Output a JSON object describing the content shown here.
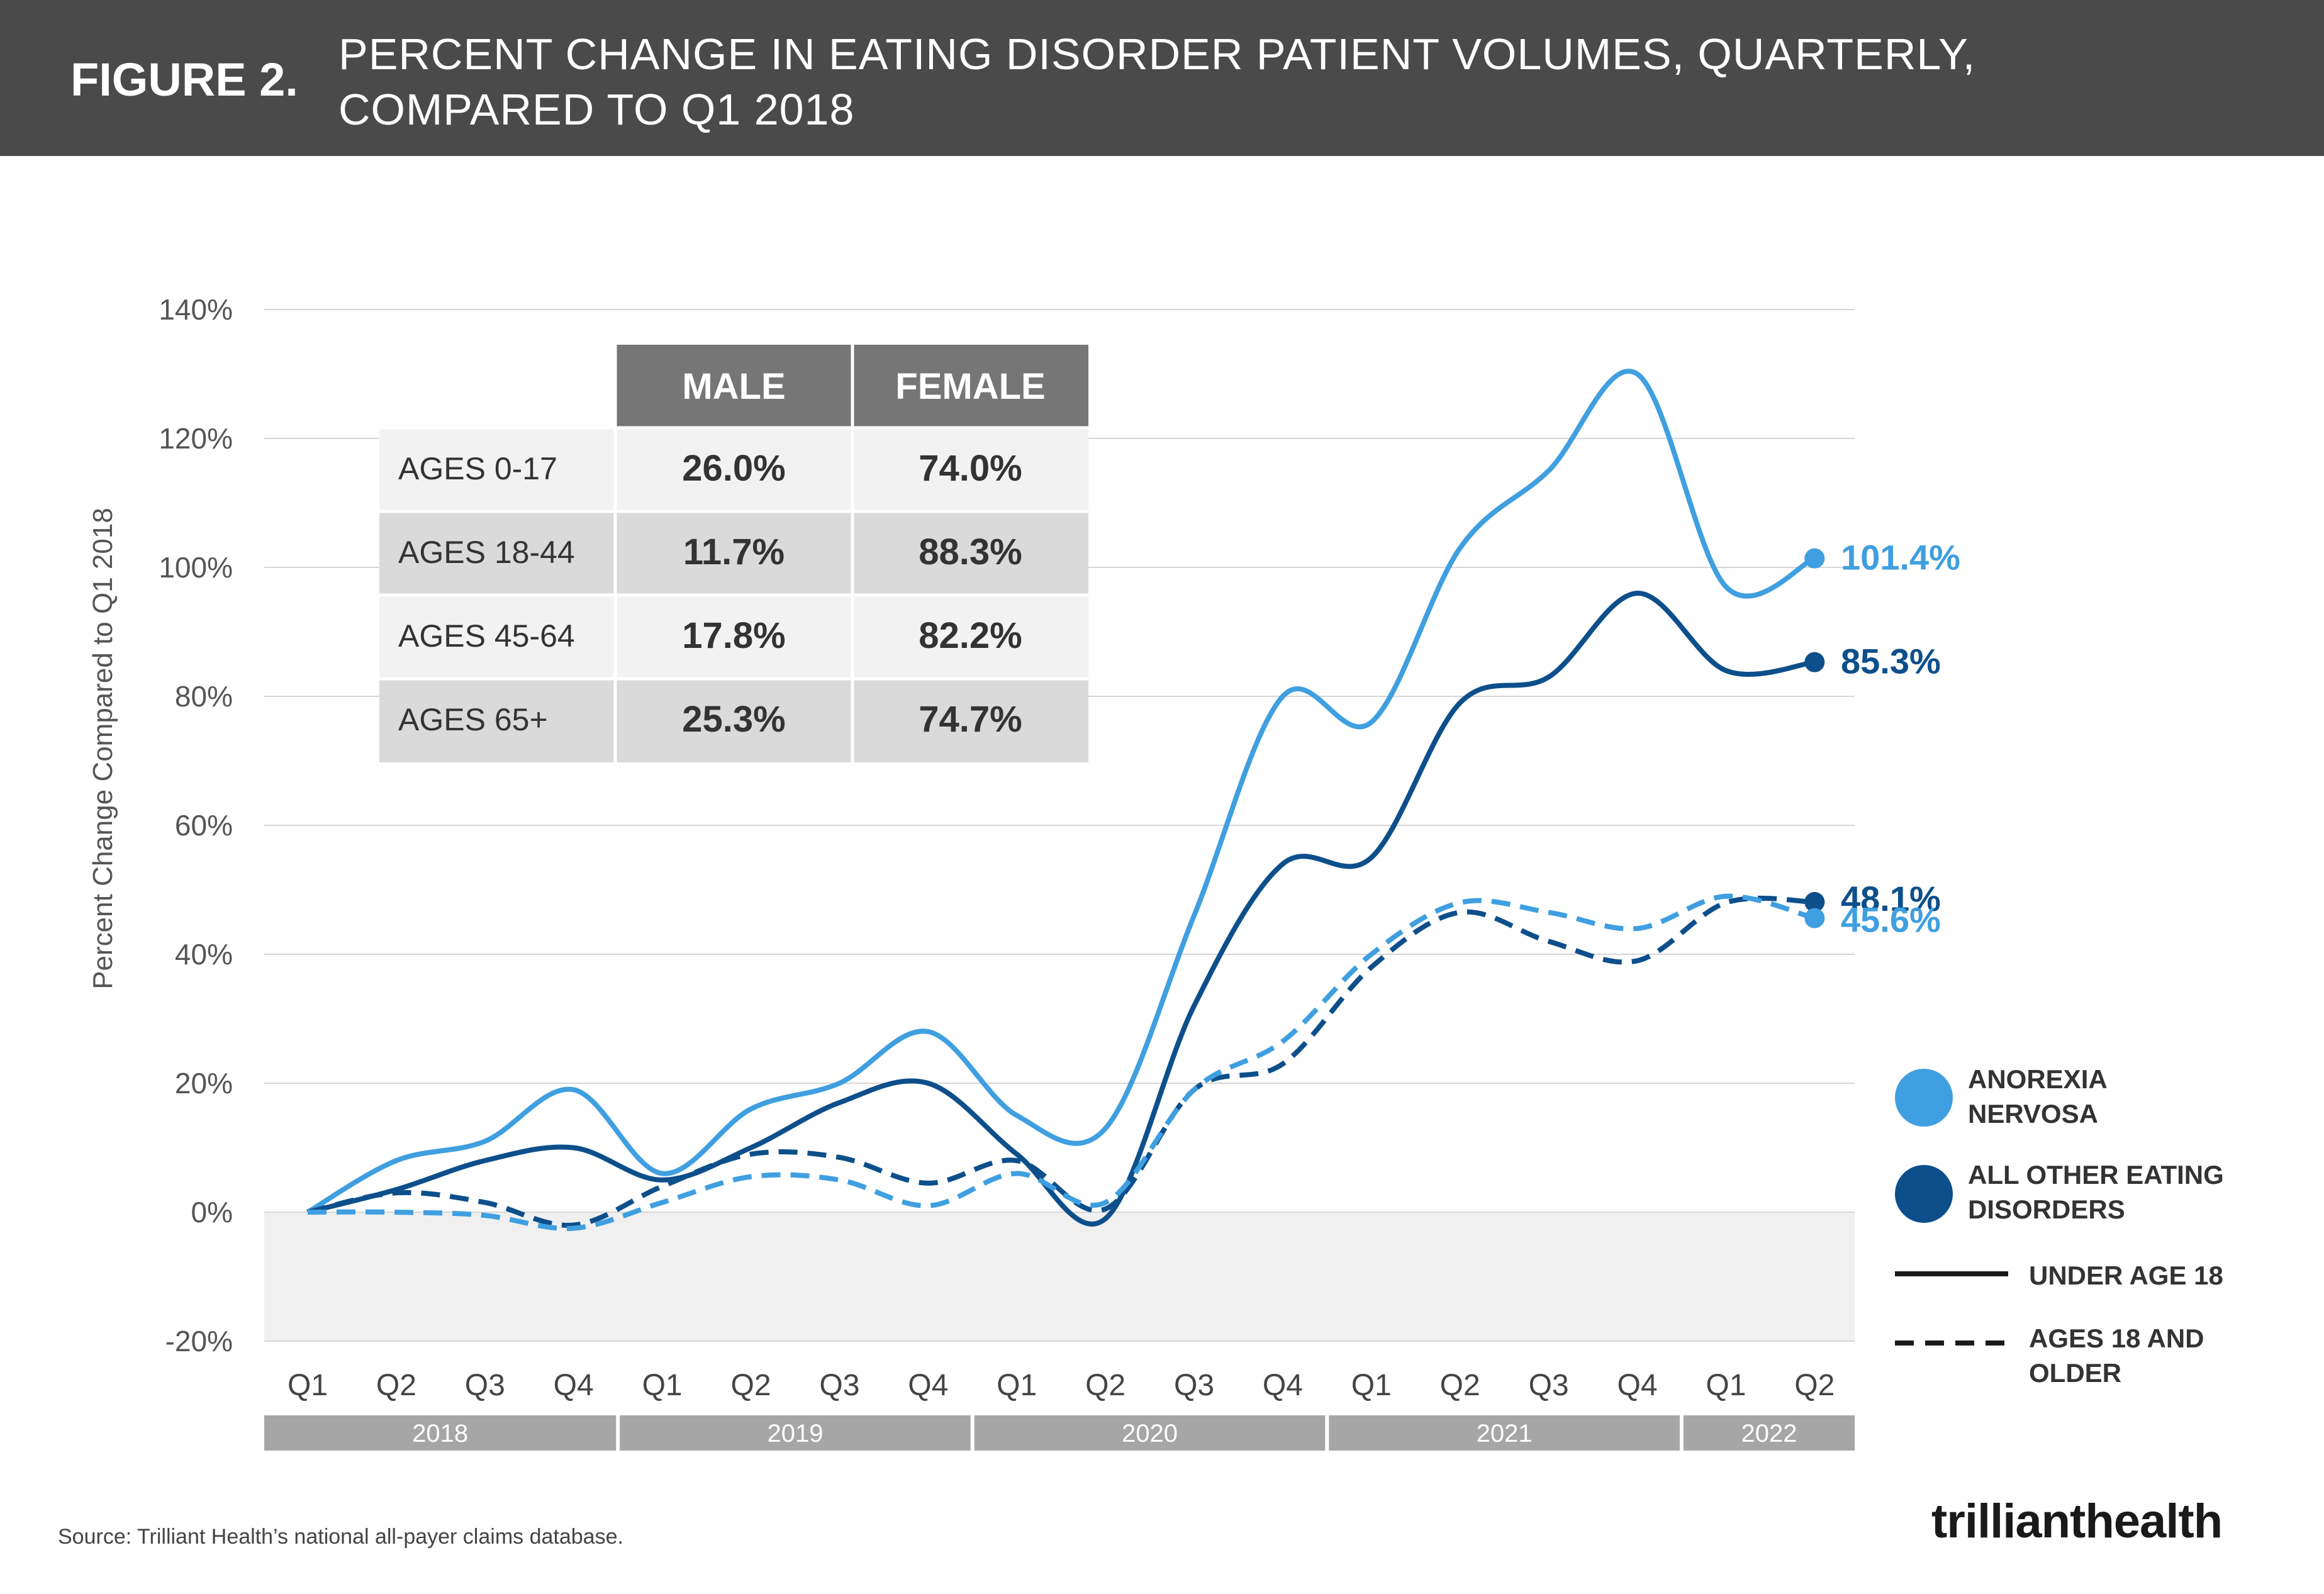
{
  "header": {
    "figure_label": "FIGURE 2.",
    "title_line1": "PERCENT CHANGE IN EATING DISORDER PATIENT VOLUMES, QUARTERLY,",
    "title_line2": "COMPARED TO Q1 2018"
  },
  "source": "Source: Trilliant Health’s national all-payer claims database.",
  "logo": {
    "text_left": "trilliant",
    "text_right": "health"
  },
  "colors": {
    "anorexia": "#3f9fe0",
    "other": "#0d4f8b",
    "negative_band": "#f0f0f0",
    "table_header": "#767676",
    "year_band": "#a6a6a6"
  },
  "table": {
    "headers": [
      "",
      "MALE",
      "FEMALE"
    ],
    "rows": [
      {
        "label": "AGES 0-17",
        "male": "26.0%",
        "female": "74.0%"
      },
      {
        "label": "AGES 18-44",
        "male": "11.7%",
        "female": "88.3%"
      },
      {
        "label": "AGES 45-64",
        "male": "17.8%",
        "female": "82.2%"
      },
      {
        "label": "AGES 65+",
        "male": "25.3%",
        "female": "74.7%"
      }
    ]
  },
  "legend": {
    "items": [
      {
        "label_line1": "ANOREXIA",
        "label_line2": "NERVOSA",
        "symbol": "dot-light"
      },
      {
        "label_line1": "ALL OTHER EATING",
        "label_line2": "DISORDERS",
        "symbol": "dot-dark"
      },
      {
        "label_line1": "UNDER AGE 18",
        "label_line2": "",
        "symbol": "solid-line"
      },
      {
        "label_line1": "AGES 18 AND",
        "label_line2": "OLDER",
        "symbol": "dashed-line"
      }
    ]
  },
  "chart_data": {
    "type": "line",
    "title": "PERCENT CHANGE IN EATING DISORDER PATIENT VOLUMES, QUARTERLY, COMPARED TO Q1 2018",
    "ylabel": "Percent Change Compared to Q1 2018",
    "xlabel": "",
    "ylim": [
      -20,
      140
    ],
    "yticks": [
      "140%",
      "120%",
      "100%",
      "80%",
      "60%",
      "40%",
      "20%",
      "0%",
      "-20%"
    ],
    "ytick_values": [
      140,
      120,
      100,
      80,
      60,
      40,
      20,
      0,
      -20
    ],
    "categories": [
      "Q1",
      "Q2",
      "Q3",
      "Q4",
      "Q1",
      "Q2",
      "Q3",
      "Q4",
      "Q1",
      "Q2",
      "Q3",
      "Q4",
      "Q1",
      "Q2",
      "Q3",
      "Q4",
      "Q1",
      "Q2"
    ],
    "years": [
      {
        "label": "2018",
        "start": 0,
        "end": 3
      },
      {
        "label": "2019",
        "start": 4,
        "end": 7
      },
      {
        "label": "2020",
        "start": 8,
        "end": 11
      },
      {
        "label": "2021",
        "start": 12,
        "end": 15
      },
      {
        "label": "2022",
        "start": 16,
        "end": 17
      }
    ],
    "grid": true,
    "legend_position": "right",
    "series": [
      {
        "name": "Anorexia Nervosa, Under Age 18",
        "color_key": "anorexia",
        "dash": false,
        "values": [
          0,
          8,
          11,
          19,
          6,
          16,
          20,
          28,
          15,
          13,
          46,
          80,
          76,
          103,
          115,
          130,
          97,
          101.4
        ],
        "end_label": "101.4%"
      },
      {
        "name": "All Other Eating Disorders, Under Age 18",
        "color_key": "other",
        "dash": false,
        "values": [
          0,
          3.5,
          8,
          10,
          5,
          10,
          17,
          20,
          9,
          -1,
          32,
          54,
          55,
          79,
          83,
          96,
          84,
          85.3
        ],
        "end_label": "85.3%"
      },
      {
        "name": "All Other Eating Disorders, Ages 18 and Older",
        "color_key": "other",
        "dash": true,
        "values": [
          0,
          3,
          1.5,
          -2,
          4,
          9,
          8.5,
          4.5,
          8,
          0.5,
          19,
          23,
          38,
          46.5,
          42,
          39,
          48,
          48.1
        ],
        "end_label": "48.1%"
      },
      {
        "name": "Anorexia Nervosa, Ages 18 and Older",
        "color_key": "anorexia",
        "dash": true,
        "values": [
          0,
          0,
          -0.5,
          -2.5,
          1.5,
          5.5,
          5,
          1,
          6,
          1.5,
          19,
          26.5,
          40,
          48,
          46.5,
          44,
          49,
          45.6
        ],
        "end_label": "45.6%"
      }
    ]
  }
}
